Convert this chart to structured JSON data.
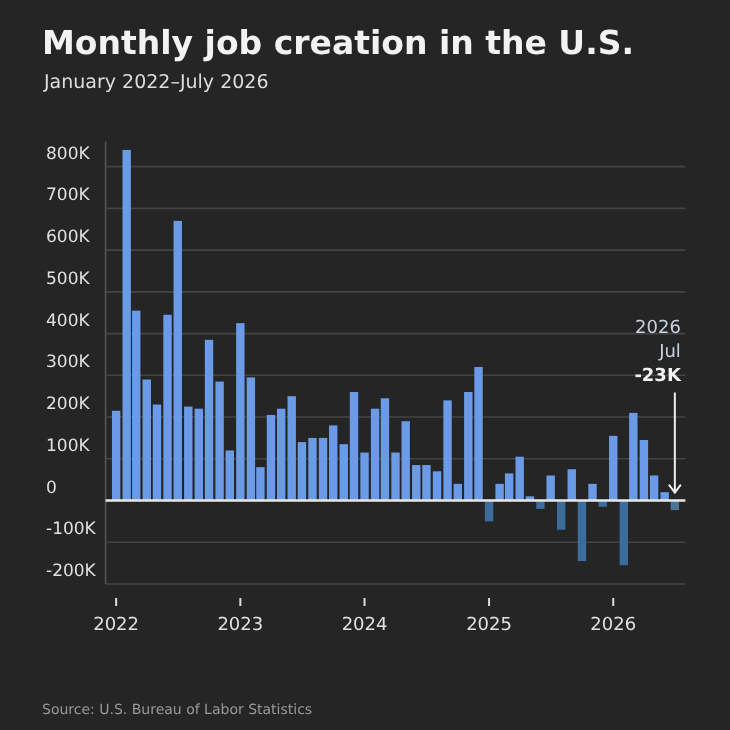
{
  "chart_data": {
    "type": "bar",
    "title": "Monthly job creation in the U.S.",
    "subtitle": "January 2022–July 2026",
    "x": [
      "2022-01",
      "2022-02",
      "2022-03",
      "2022-04",
      "2022-05",
      "2022-06",
      "2022-07",
      "2022-08",
      "2022-09",
      "2022-10",
      "2022-11",
      "2022-12",
      "2023-01",
      "2023-02",
      "2023-03",
      "2023-04",
      "2023-05",
      "2023-06",
      "2023-07",
      "2023-08",
      "2023-09",
      "2023-10",
      "2023-11",
      "2023-12",
      "2024-01",
      "2024-02",
      "2024-03",
      "2024-04",
      "2024-05",
      "2024-06",
      "2024-07",
      "2024-08",
      "2024-09",
      "2024-10",
      "2024-11",
      "2024-12",
      "2025-01",
      "2025-02",
      "2025-03",
      "2025-04",
      "2025-05",
      "2025-06",
      "2025-07",
      "2025-08",
      "2025-09",
      "2025-10",
      "2025-11",
      "2025-12",
      "2026-01",
      "2026-02",
      "2026-03",
      "2026-04",
      "2026-05",
      "2026-06",
      "2026-07"
    ],
    "values": [
      215000,
      840000,
      455000,
      290000,
      230000,
      445000,
      670000,
      225000,
      220000,
      385000,
      285000,
      120000,
      425000,
      295000,
      80000,
      205000,
      220000,
      250000,
      140000,
      150000,
      150000,
      180000,
      135000,
      260000,
      115000,
      220000,
      245000,
      115000,
      190000,
      85000,
      85000,
      70000,
      240000,
      40000,
      260000,
      320000,
      -50000,
      40000,
      65000,
      105000,
      10000,
      -20000,
      60000,
      -70000,
      75000,
      -145000,
      40000,
      -15000,
      155000,
      -155000,
      210000,
      145000,
      60000,
      20000,
      -23000
    ],
    "colors": [
      "#6b9be6",
      "#6b9be6",
      "#6b9be6",
      "#6b9be6",
      "#6b9be6",
      "#6b9be6",
      "#6b9be6",
      "#6b9be6",
      "#6b9be6",
      "#6b9be6",
      "#6b9be6",
      "#6b9be6",
      "#6b9be6",
      "#6b9be6",
      "#6b9be6",
      "#6b9be6",
      "#6b9be6",
      "#6b9be6",
      "#6b9be6",
      "#6b9be6",
      "#6b9be6",
      "#6b9be6",
      "#6b9be6",
      "#6b9be6",
      "#6b9be6",
      "#6b9be6",
      "#6b9be6",
      "#6b9be6",
      "#6b9be6",
      "#6b9be6",
      "#6b9be6",
      "#6b9be6",
      "#6b9be6",
      "#6b9be6",
      "#6b9be6",
      "#6b9be6",
      "#3b6c9c",
      "#6b9be6",
      "#6b9be6",
      "#6b9be6",
      "#6b9be6",
      "#3b6c9c",
      "#6b9be6",
      "#3b6c9c",
      "#6b9be6",
      "#3b6c9c",
      "#6b9be6",
      "#3b6c9c",
      "#6b9be6",
      "#3b6c9c",
      "#6b9be6",
      "#6b9be6",
      "#6b9be6",
      "#6b9be6",
      "#4d7593"
    ],
    "xlim": [
      "2021-12",
      "2026-08"
    ],
    "xticks": [
      {
        "value": "2022-01",
        "label": "2022"
      },
      {
        "value": "2023-01",
        "label": "2023"
      },
      {
        "value": "2024-01",
        "label": "2024"
      },
      {
        "value": "2025-01",
        "label": "2025"
      },
      {
        "value": "2026-01",
        "label": "2026"
      }
    ],
    "ylim": [
      -200000,
      860000
    ],
    "yticks": [
      {
        "value": -200000,
        "label": "-200K"
      },
      {
        "value": -100000,
        "label": "-100K"
      },
      0,
      {
        "value": 100000,
        "label": "100K"
      },
      {
        "value": 200000,
        "label": "200K"
      },
      {
        "value": 300000,
        "label": "300K"
      },
      {
        "value": 400000,
        "label": "400K"
      },
      {
        "value": 500000,
        "label": "500K"
      },
      {
        "value": 600000,
        "label": "600K"
      },
      {
        "value": 700000,
        "label": "700K"
      },
      {
        "value": 800000,
        "label": "800K"
      }
    ],
    "grid": "y",
    "annotations": [
      {
        "text": "2026\nJul\n-23K",
        "x": "2026-07",
        "y": -23000
      },
      "Source: U.S. Bureau of Labor Statistics"
    ]
  }
}
